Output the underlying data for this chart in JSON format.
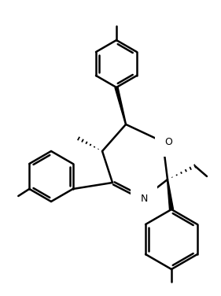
{
  "bg_color": "#ffffff",
  "line_color": "#000000",
  "bond_lw": 1.8,
  "figsize": [
    2.81,
    3.76
  ],
  "dpi": 100
}
